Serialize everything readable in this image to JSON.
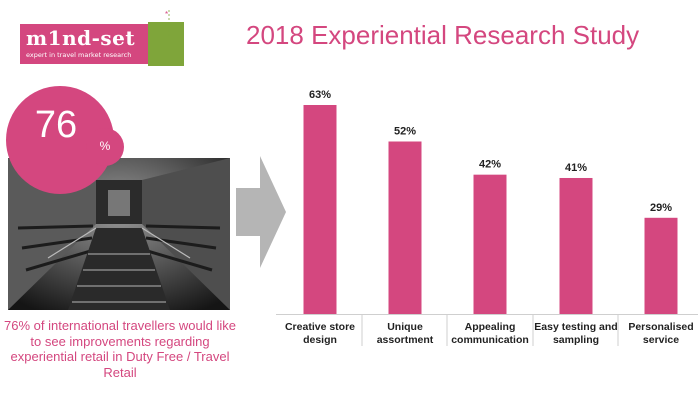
{
  "logo": {
    "brand": "m1nd-set",
    "tagline": "expert in travel market research"
  },
  "title": "2018 Experiential Research Study",
  "stat": {
    "value": "76",
    "unit": "%",
    "caption": "76% of international travellers would like to see improvements regarding experiential retail in Duty Free / Travel Retail"
  },
  "colors": {
    "accent": "#d4477f",
    "logo_green": "#7fa53a",
    "arrow": "#b5b5b5"
  },
  "icons": {
    "arrow": "right-arrow-icon"
  },
  "chart_data": {
    "type": "bar",
    "categories": [
      "Creative store design",
      "Unique assortment",
      "Appealing communication",
      "Easy testing and sampling",
      "Personalised service"
    ],
    "values": [
      63,
      52,
      42,
      41,
      29
    ],
    "value_labels": [
      "63%",
      "52%",
      "42%",
      "41%",
      "29%"
    ],
    "ylim": [
      0,
      70
    ],
    "grid": false,
    "color": "#d4477f"
  }
}
